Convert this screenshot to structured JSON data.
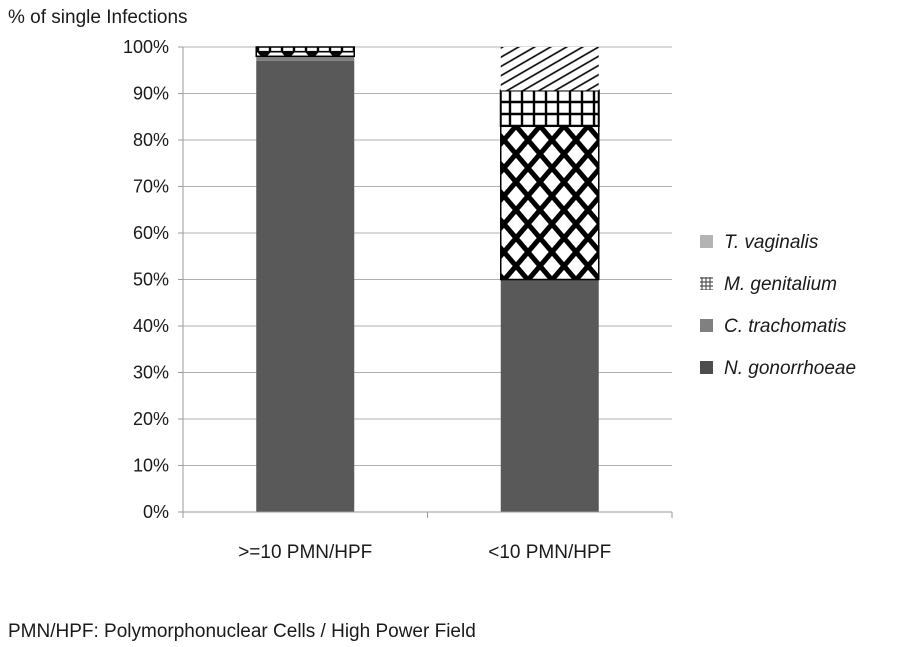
{
  "chart_data": {
    "type": "bar",
    "stacked": true,
    "title": "",
    "ylabel": "% of single Infections",
    "xlabel": "",
    "ylim": [
      0,
      100
    ],
    "yticks": [
      "0%",
      "10%",
      "20%",
      "30%",
      "40%",
      "50%",
      "60%",
      "70%",
      "80%",
      "90%",
      "100%"
    ],
    "categories": [
      ">=10 PMN/HPF",
      "<10 PMN/HPF"
    ],
    "series": [
      {
        "name": "N. gonorrhoeae",
        "values": [
          97,
          50
        ],
        "color": "#595959",
        "pattern": "solid"
      },
      {
        "name": "C. trachomatis",
        "values": [
          1,
          0
        ],
        "color": "#808080",
        "pattern": "solid"
      },
      {
        "name": "M. genitalium",
        "values": [
          1,
          33
        ],
        "color": "#000000",
        "pattern": "diamond-lattice"
      },
      {
        "name": "T. vaginalis",
        "values": [
          1,
          17
        ],
        "color": "#000000",
        "pattern": "grid-then-diagonal"
      }
    ],
    "legend_order": [
      "T. vaginalis",
      "M. genitalium",
      "C. trachomatis",
      "N. gonorrhoeae"
    ],
    "legend_position": "right",
    "grid": true,
    "footnote": "PMN/HPF: Polymorphonuclear Cells / High Power Field"
  }
}
